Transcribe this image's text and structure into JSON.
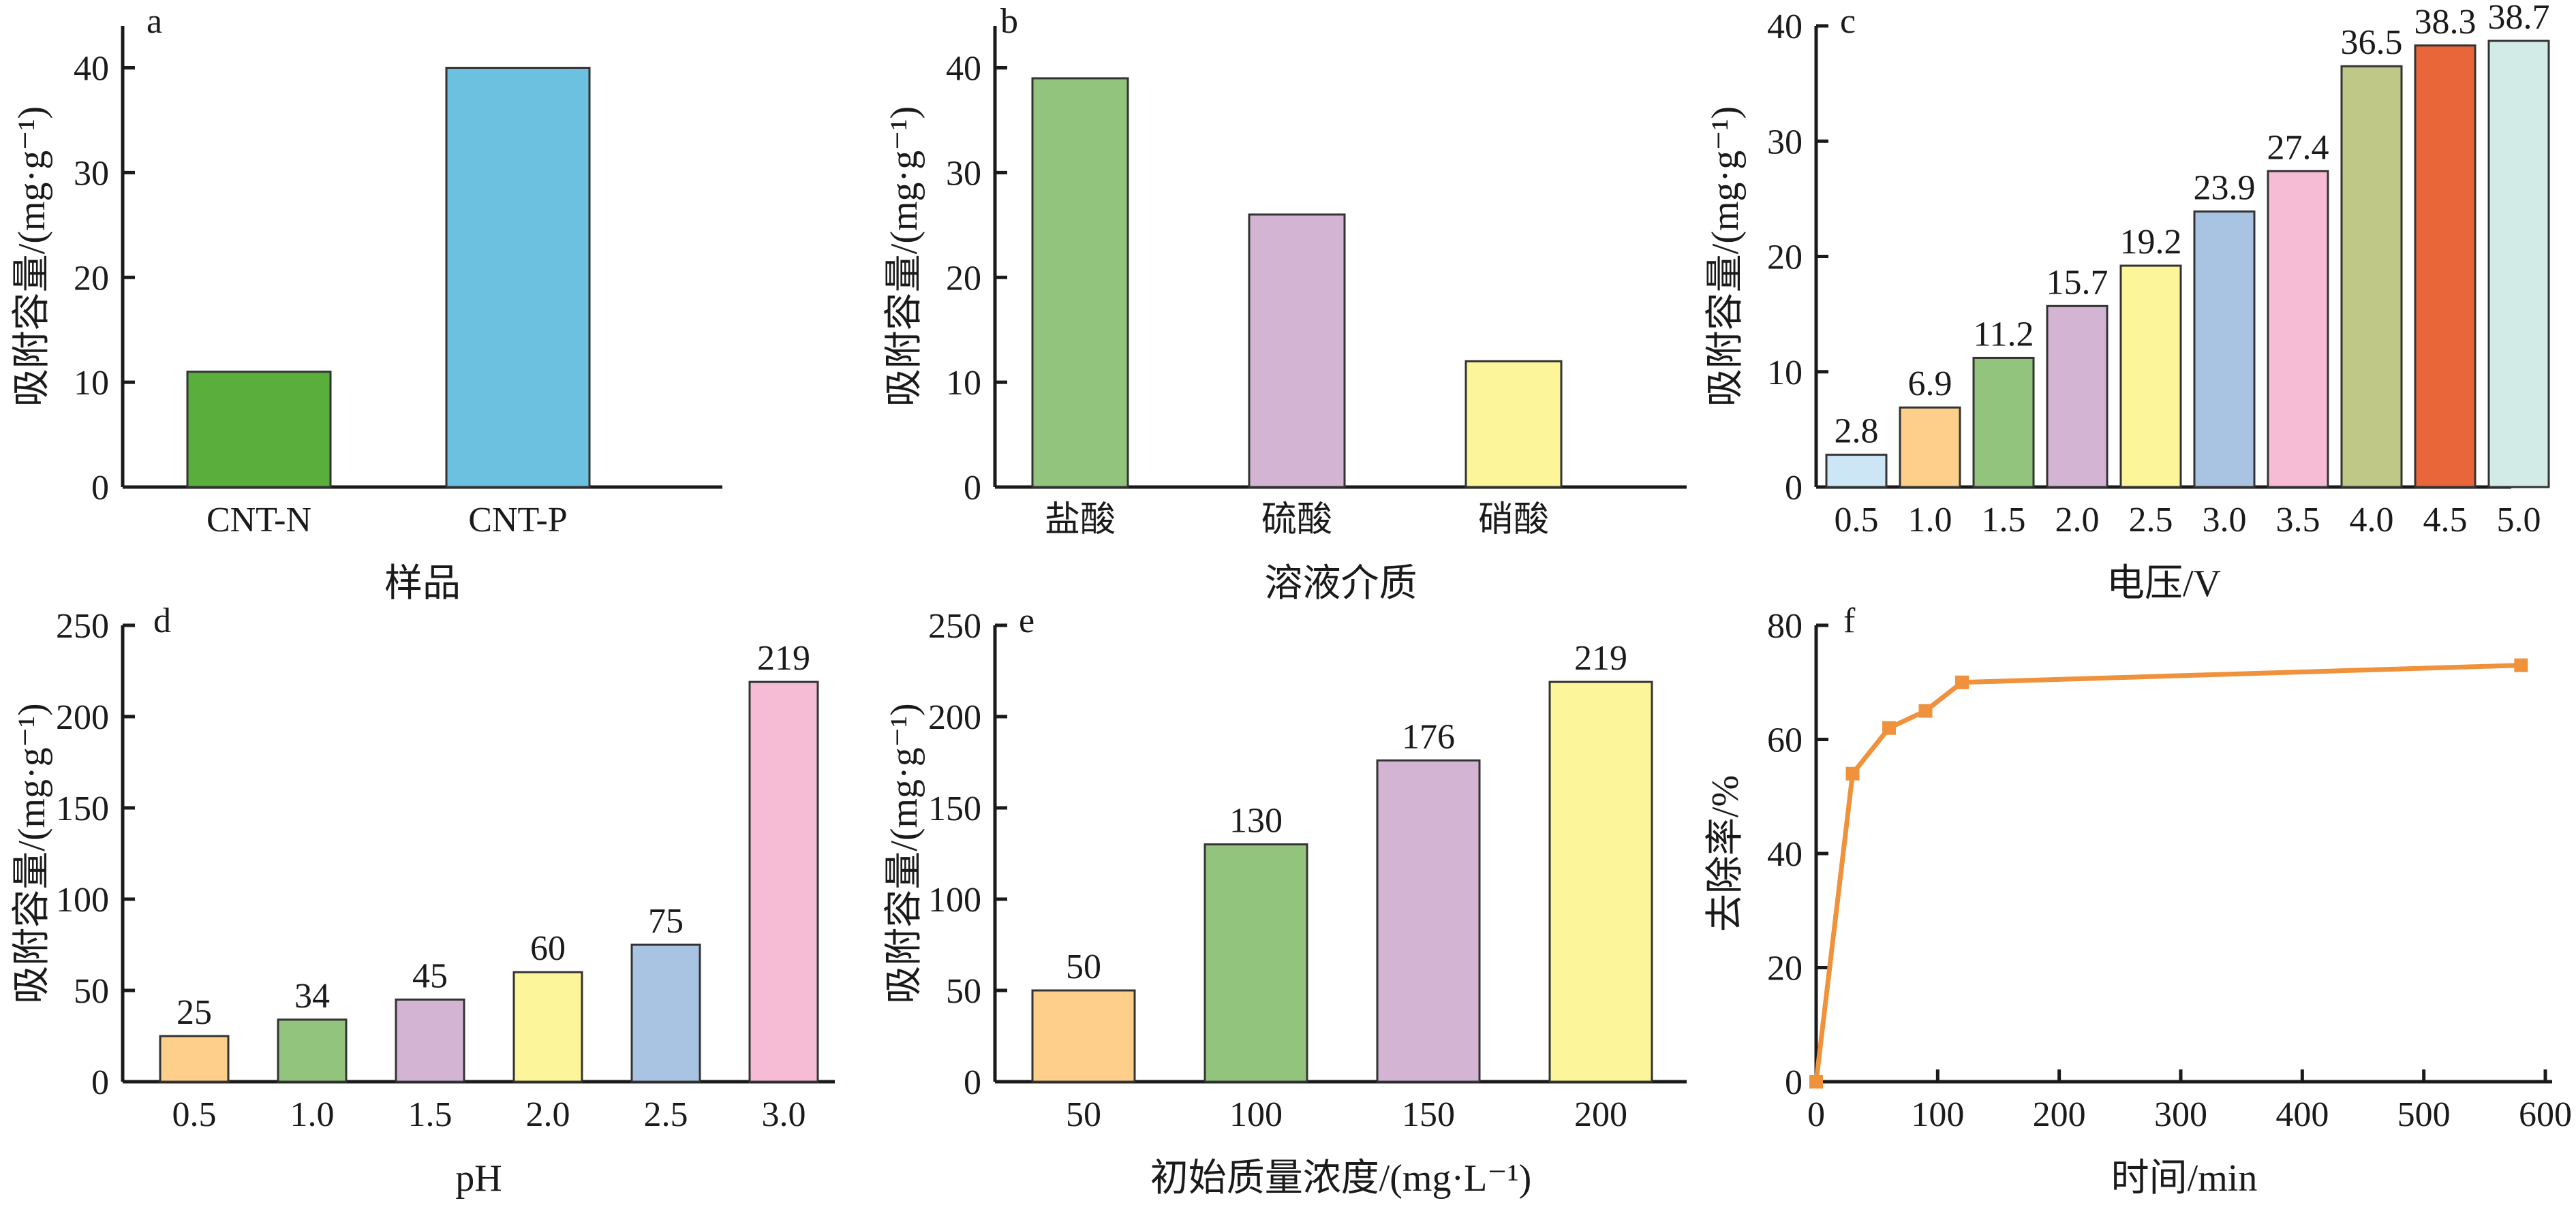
{
  "figure": {
    "background": "#ffffff"
  },
  "chart_data": [
    {
      "panel": "a",
      "type": "bar",
      "categories": [
        "CNT-N",
        "CNT-P"
      ],
      "values": [
        11,
        40
      ],
      "colors": [
        "#5aae3c",
        "#6bc1df"
      ],
      "value_labels": [],
      "xlabel": "样品",
      "ylabel": "吸附容量/(mg·g⁻¹)",
      "ylim": [
        0,
        44
      ],
      "yticks": [
        0,
        10,
        20,
        30,
        40
      ]
    },
    {
      "panel": "b",
      "type": "bar",
      "categories": [
        "盐酸",
        "硫酸",
        "硝酸"
      ],
      "values": [
        39,
        26,
        12
      ],
      "colors": [
        "#93c47d",
        "#d3b5d3",
        "#fdf59a"
      ],
      "value_labels": [],
      "xlabel": "溶液介质",
      "ylabel": "吸附容量/(mg·g⁻¹)",
      "ylim": [
        0,
        44
      ],
      "yticks": [
        0,
        10,
        20,
        30,
        40
      ]
    },
    {
      "panel": "c",
      "type": "bar",
      "categories": [
        "0.5",
        "1.0",
        "1.5",
        "2.0",
        "2.5",
        "3.0",
        "3.5",
        "4.0",
        "4.5",
        "5.0"
      ],
      "values": [
        2.8,
        6.9,
        11.2,
        15.7,
        19.2,
        23.9,
        27.4,
        36.5,
        38.3,
        38.7
      ],
      "colors": [
        "#cde6f5",
        "#fdcf8b",
        "#93c47d",
        "#d3b5d3",
        "#fdf59a",
        "#a8c4e2",
        "#f6bbd5",
        "#bfc887",
        "#e8663a",
        "#d3ebe6"
      ],
      "value_labels": [
        "2.8",
        "6.9",
        "11.2",
        "15.7",
        "19.2",
        "23.9",
        "27.4",
        "36.5",
        "38.3",
        "38.7"
      ],
      "xlabel": "电压/V",
      "ylabel": "吸附容量/(mg·g⁻¹)",
      "ylim": [
        0,
        40
      ],
      "yticks": [
        0,
        10,
        20,
        30,
        40
      ]
    },
    {
      "panel": "d",
      "type": "bar",
      "categories": [
        "0.5",
        "1.0",
        "1.5",
        "2.0",
        "2.5",
        "3.0"
      ],
      "values": [
        25,
        34,
        45,
        60,
        75,
        219
      ],
      "colors": [
        "#fdcf8b",
        "#93c47d",
        "#d3b5d3",
        "#fdf59a",
        "#a8c4e2",
        "#f6bbd5"
      ],
      "value_labels": [
        "25",
        "34",
        "45",
        "60",
        "75",
        "219"
      ],
      "xlabel": "pH",
      "ylabel": "吸附容量/(mg·g⁻¹)",
      "ylim": [
        0,
        250
      ],
      "yticks": [
        0,
        50,
        100,
        150,
        200,
        250
      ]
    },
    {
      "panel": "e",
      "type": "bar",
      "categories": [
        "50",
        "100",
        "150",
        "200"
      ],
      "values": [
        50,
        130,
        176,
        219
      ],
      "colors": [
        "#fdcf8b",
        "#93c47d",
        "#d3b5d3",
        "#fdf59a"
      ],
      "value_labels": [
        "50",
        "130",
        "176",
        "219"
      ],
      "xlabel": "初始质量浓度/(mg·L⁻¹)",
      "ylabel": "吸附容量/(mg·g⁻¹)",
      "ylim": [
        0,
        250
      ],
      "yticks": [
        0,
        50,
        100,
        150,
        200,
        250
      ]
    },
    {
      "panel": "f",
      "type": "line",
      "series": [
        {
          "x": [
            0,
            30,
            60,
            90,
            120,
            580
          ],
          "y": [
            0,
            54,
            62,
            65,
            70,
            73
          ],
          "color": "#f0913c"
        }
      ],
      "xlabel": "时间/min",
      "ylabel": "去除率/%",
      "xlim": [
        0,
        600
      ],
      "ylim": [
        0,
        80
      ],
      "xticks": [
        0,
        100,
        200,
        300,
        400,
        500,
        600
      ],
      "yticks": [
        0,
        20,
        40,
        60,
        80
      ]
    }
  ]
}
